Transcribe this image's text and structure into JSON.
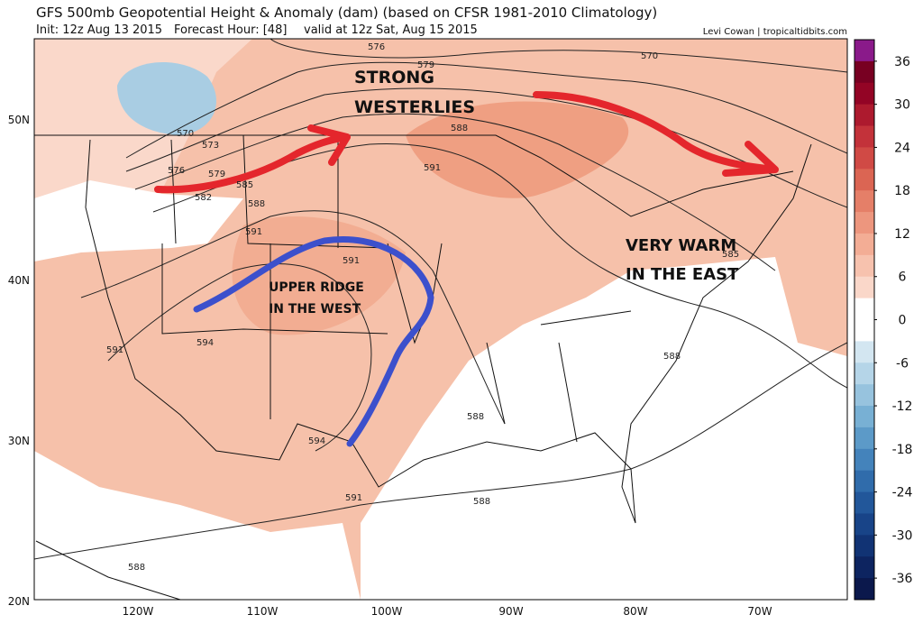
{
  "header": {
    "title": "GFS 500mb Geopotential Height & Anomaly (dam) (based on CFSR 1981-2010 Climatology)",
    "init": "Init: 12z Aug 13 2015",
    "forecast_hour": "Forecast Hour: [48]",
    "valid": "valid at 12z Sat, Aug 15 2015",
    "credit": "Levi Cowan | tropicaltidbits.com"
  },
  "map": {
    "lat_labels": [
      "50N",
      "40N",
      "30N",
      "20N"
    ],
    "lon_labels": [
      "120W",
      "110W",
      "100W",
      "90W",
      "80W",
      "70W"
    ],
    "annotations": [
      "STRONG",
      "WESTERLIES",
      "UPPER RIDGE",
      "IN THE WEST",
      "VERY WARM",
      "IN THE EAST"
    ],
    "contour_labels": [
      576,
      579,
      570,
      570,
      573,
      576,
      579,
      582,
      585,
      588,
      588,
      591,
      591,
      591,
      594,
      594,
      591,
      588,
      588,
      591,
      588,
      585,
      588
    ]
  },
  "colorbar": {
    "range": [
      -39,
      39
    ],
    "ticks": [
      36,
      30,
      24,
      18,
      12,
      6,
      0,
      -6,
      -12,
      -18,
      -24,
      -30,
      -36
    ],
    "colors": [
      "#8a1a8a",
      "#780022",
      "#930425",
      "#ad1a2e",
      "#c3323a",
      "#d04a45",
      "#db6553",
      "#e57f68",
      "#ed967e",
      "#f3ad95",
      "#f7c2ae",
      "#fad7c9",
      "#ffffff",
      "#ffffff",
      "#d3e6f1",
      "#b5d5e8",
      "#97c3de",
      "#78b0d4",
      "#5c9ac8",
      "#4483bb",
      "#306cab",
      "#22579a",
      "#184488",
      "#113374",
      "#0d2460",
      "#0b184c"
    ]
  }
}
